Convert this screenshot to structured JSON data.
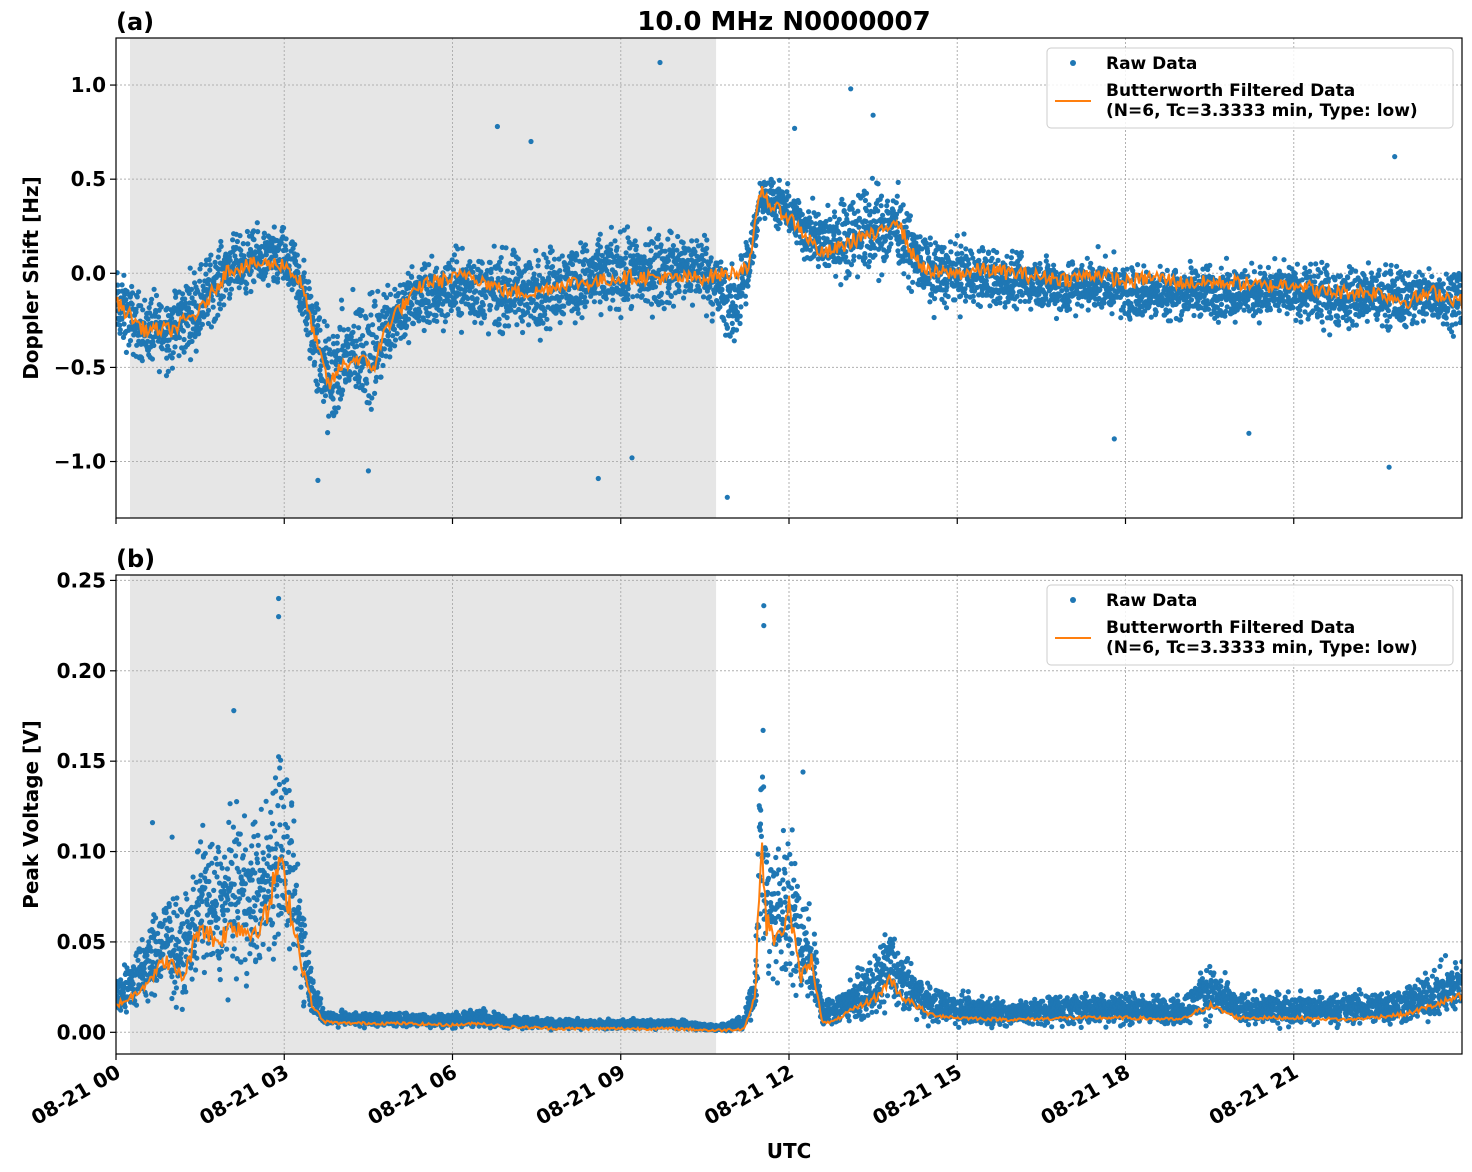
{
  "chart_data": [
    {
      "type": "scatter",
      "panel_label": "(a)",
      "title": "10.0 MHz N0000007",
      "xlabel": "",
      "ylabel": "Doppler Shift [Hz]",
      "ylim": [
        -1.3,
        1.25
      ],
      "yticks": [
        1.0,
        0.5,
        0.0,
        -0.5,
        -1.0
      ],
      "ytick_labels": [
        "1.0",
        "0.5",
        "0.0",
        "−0.5",
        "−1.0"
      ],
      "xlim_hours": [
        0,
        24
      ],
      "xtick_hours": [
        0,
        3,
        6,
        9,
        12,
        15,
        18,
        21
      ],
      "grid": true,
      "shaded_region_hours": [
        0.25,
        10.7
      ],
      "legend_position": "upper-right",
      "legend": [
        {
          "label": "Raw Data",
          "marker": "dot"
        },
        {
          "label": "Butterworth Filtered Data",
          "label2": "(N=6, Tc=3.3333 min, Type: low)",
          "marker": "line"
        }
      ],
      "series": [
        {
          "name": "Butterworth Filtered Data",
          "x": [
            0,
            0.5,
            1,
            1.5,
            2,
            2.5,
            3,
            3.3,
            3.6,
            3.8,
            4,
            4.3,
            4.6,
            4.8,
            5,
            5.2,
            5.5,
            6,
            6.3,
            6.6,
            7,
            7.5,
            8,
            8.5,
            9,
            9.5,
            10,
            10.5,
            11,
            11.3,
            11.5,
            11.7,
            12,
            12.3,
            12.6,
            13,
            13.3,
            13.6,
            13.9,
            14.2,
            14.5,
            15,
            15.5,
            16,
            16.5,
            17,
            17.5,
            18,
            18.5,
            19,
            19.5,
            20,
            20.5,
            21,
            21.5,
            22,
            22.5,
            23,
            23.5,
            24
          ],
          "y": [
            -0.15,
            -0.3,
            -0.3,
            -0.2,
            0.02,
            0.05,
            0.05,
            -0.05,
            -0.4,
            -0.6,
            -0.5,
            -0.45,
            -0.5,
            -0.3,
            -0.2,
            -0.15,
            -0.05,
            -0.03,
            0,
            -0.05,
            -0.1,
            -0.1,
            -0.05,
            -0.05,
            -0.02,
            -0.02,
            -0.03,
            -0.02,
            0,
            0.05,
            0.45,
            0.35,
            0.3,
            0.2,
            0.1,
            0.15,
            0.2,
            0.2,
            0.3,
            0.1,
            0.0,
            0.0,
            0.02,
            0.0,
            -0.02,
            -0.03,
            0.0,
            -0.05,
            -0.02,
            -0.05,
            -0.05,
            -0.05,
            -0.07,
            -0.05,
            -0.1,
            -0.1,
            -0.1,
            -0.15,
            -0.1,
            -0.15
          ]
        },
        {
          "name": "Raw Data",
          "envelope_x": [
            0,
            0.5,
            1,
            1.5,
            2,
            2.5,
            3,
            3.3,
            3.6,
            3.8,
            4,
            4.3,
            4.6,
            4.8,
            5,
            5.2,
            5.5,
            6,
            6.3,
            6.6,
            7,
            7.5,
            8,
            8.5,
            9,
            9.5,
            10,
            10.5,
            11,
            11.3,
            11.5,
            11.7,
            12,
            12.3,
            12.6,
            13,
            13.3,
            13.6,
            13.9,
            14.2,
            14.5,
            15,
            15.5,
            16,
            16.5,
            17,
            17.5,
            18,
            18.5,
            19,
            19.5,
            20,
            20.5,
            21,
            21.5,
            22,
            22.5,
            23,
            23.5,
            24
          ],
          "envelope_upper": [
            0.1,
            -0.05,
            0.0,
            0.15,
            0.25,
            0.3,
            0.3,
            0.2,
            0.0,
            -0.2,
            -0.1,
            0.0,
            0.0,
            0.05,
            0.1,
            0.1,
            0.15,
            0.2,
            0.2,
            0.2,
            0.2,
            0.2,
            0.25,
            0.25,
            0.3,
            0.3,
            0.3,
            0.3,
            0.1,
            0.3,
            0.55,
            0.55,
            0.5,
            0.45,
            0.4,
            0.5,
            0.55,
            0.55,
            0.55,
            0.35,
            0.25,
            0.25,
            0.2,
            0.15,
            0.15,
            0.15,
            0.15,
            0.1,
            0.1,
            0.1,
            0.1,
            0.1,
            0.1,
            0.1,
            0.1,
            0.1,
            0.1,
            0.1,
            0.1,
            0.1
          ],
          "envelope_lower": [
            -0.45,
            -0.55,
            -0.6,
            -0.45,
            -0.2,
            -0.15,
            -0.15,
            -0.35,
            -0.8,
            -1.0,
            -0.85,
            -0.8,
            -0.85,
            -0.6,
            -0.5,
            -0.45,
            -0.4,
            -0.35,
            -0.35,
            -0.4,
            -0.4,
            -0.4,
            -0.35,
            -0.3,
            -0.3,
            -0.3,
            -0.25,
            -0.25,
            -0.5,
            -0.2,
            0.3,
            0.2,
            0.15,
            0.0,
            -0.1,
            -0.1,
            -0.1,
            -0.1,
            0.0,
            -0.15,
            -0.25,
            -0.25,
            -0.25,
            -0.25,
            -0.25,
            -0.3,
            -0.25,
            -0.3,
            -0.3,
            -0.3,
            -0.3,
            -0.3,
            -0.3,
            -0.3,
            -0.35,
            -0.35,
            -0.35,
            -0.35,
            -0.35,
            -0.35
          ],
          "outliers_x": [
            9.7,
            10.9,
            13.1,
            13.5,
            12.1,
            7.4,
            3.6,
            4.5,
            8.6,
            17.8,
            22.7,
            22.8,
            20.2,
            6.8,
            9.2
          ],
          "outliers_y": [
            1.12,
            -1.19,
            0.98,
            0.84,
            0.77,
            0.7,
            -1.1,
            -1.05,
            -1.09,
            -0.88,
            -1.03,
            0.62,
            -0.85,
            0.78,
            -0.98
          ]
        }
      ]
    },
    {
      "type": "scatter",
      "panel_label": "(b)",
      "title": "",
      "xlabel": "UTC",
      "ylabel": "Peak Voltage [V]",
      "ylim": [
        -0.012,
        0.253
      ],
      "yticks": [
        0.0,
        0.05,
        0.1,
        0.15,
        0.2,
        0.25
      ],
      "ytick_labels": [
        "0.00",
        "0.05",
        "0.10",
        "0.15",
        "0.20",
        "0.25"
      ],
      "xlim_hours": [
        0,
        24
      ],
      "xtick_hours": [
        0,
        3,
        6,
        9,
        12,
        15,
        18,
        21
      ],
      "xtick_labels": [
        "08-21 00",
        "08-21 03",
        "08-21 06",
        "08-21 09",
        "08-21 12",
        "08-21 15",
        "08-21 18",
        "08-21 21"
      ],
      "grid": true,
      "shaded_region_hours": [
        0.25,
        10.7
      ],
      "legend_position": "upper-right",
      "legend": [
        {
          "label": "Raw Data",
          "marker": "dot"
        },
        {
          "label": "Butterworth Filtered Data",
          "label2": "(N=6, Tc=3.3333 min, Type: low)",
          "marker": "line"
        }
      ],
      "series": [
        {
          "name": "Butterworth Filtered Data",
          "x": [
            0,
            0.3,
            0.6,
            0.9,
            1.2,
            1.5,
            1.8,
            2.1,
            2.4,
            2.7,
            2.9,
            3.1,
            3.3,
            3.5,
            3.7,
            4,
            5,
            6,
            6.5,
            7,
            8,
            9,
            10,
            10.7,
            11.2,
            11.4,
            11.5,
            11.6,
            11.8,
            12,
            12.2,
            12.4,
            12.6,
            12.8,
            13,
            13.3,
            13.6,
            13.8,
            14,
            14.5,
            15,
            16,
            17,
            18,
            19,
            19.5,
            20,
            21,
            22,
            23,
            24
          ],
          "y": [
            0.015,
            0.02,
            0.03,
            0.04,
            0.03,
            0.06,
            0.05,
            0.06,
            0.055,
            0.065,
            0.095,
            0.07,
            0.04,
            0.015,
            0.006,
            0.005,
            0.005,
            0.004,
            0.005,
            0.003,
            0.002,
            0.002,
            0.002,
            0.001,
            0.002,
            0.02,
            0.11,
            0.06,
            0.05,
            0.07,
            0.03,
            0.04,
            0.005,
            0.006,
            0.01,
            0.015,
            0.02,
            0.03,
            0.02,
            0.01,
            0.008,
            0.007,
            0.008,
            0.008,
            0.007,
            0.015,
            0.008,
            0.008,
            0.007,
            0.01,
            0.02
          ]
        },
        {
          "name": "Raw Data",
          "envelope_x": [
            0,
            0.3,
            0.6,
            0.9,
            1.2,
            1.5,
            1.8,
            2.1,
            2.4,
            2.7,
            2.9,
            3.1,
            3.3,
            3.5,
            3.7,
            4,
            5,
            6,
            6.5,
            7,
            8,
            9,
            10,
            10.7,
            11.2,
            11.4,
            11.5,
            11.6,
            11.8,
            12,
            12.2,
            12.4,
            12.6,
            12.8,
            13,
            13.3,
            13.6,
            13.8,
            14,
            14.5,
            15,
            16,
            17,
            18,
            19,
            19.5,
            20,
            21,
            22,
            23,
            24
          ],
          "envelope_upper": [
            0.035,
            0.05,
            0.07,
            0.09,
            0.08,
            0.13,
            0.12,
            0.14,
            0.13,
            0.15,
            0.2,
            0.15,
            0.1,
            0.04,
            0.015,
            0.013,
            0.012,
            0.012,
            0.015,
            0.01,
            0.008,
            0.008,
            0.008,
            0.005,
            0.01,
            0.05,
            0.22,
            0.13,
            0.12,
            0.14,
            0.1,
            0.08,
            0.02,
            0.025,
            0.03,
            0.04,
            0.05,
            0.07,
            0.05,
            0.03,
            0.025,
            0.02,
            0.025,
            0.025,
            0.022,
            0.045,
            0.025,
            0.025,
            0.025,
            0.03,
            0.05
          ],
          "envelope_lower": [
            0.005,
            0.005,
            0.008,
            0.01,
            0.008,
            0.015,
            0.015,
            0.015,
            0.015,
            0.015,
            0.02,
            0.02,
            0.01,
            0.004,
            0.002,
            0.002,
            0.002,
            0.001,
            0.002,
            0.001,
            0.001,
            0.001,
            0.001,
            0.0,
            0.0,
            0.005,
            0.02,
            0.01,
            0.005,
            0.01,
            0.005,
            0.005,
            0.0,
            0.0,
            0.002,
            0.003,
            0.003,
            0.005,
            0.003,
            0.002,
            0.001,
            0.001,
            0.001,
            0.001,
            0.001,
            0.002,
            0.001,
            0.001,
            0.001,
            0.001,
            0.003
          ],
          "outliers_x": [
            2.9,
            2.9,
            11.55,
            11.55,
            12.25,
            0.65,
            1.0,
            2.1
          ],
          "outliers_y": [
            0.24,
            0.23,
            0.236,
            0.225,
            0.144,
            0.116,
            0.108,
            0.178
          ]
        }
      ]
    }
  ]
}
